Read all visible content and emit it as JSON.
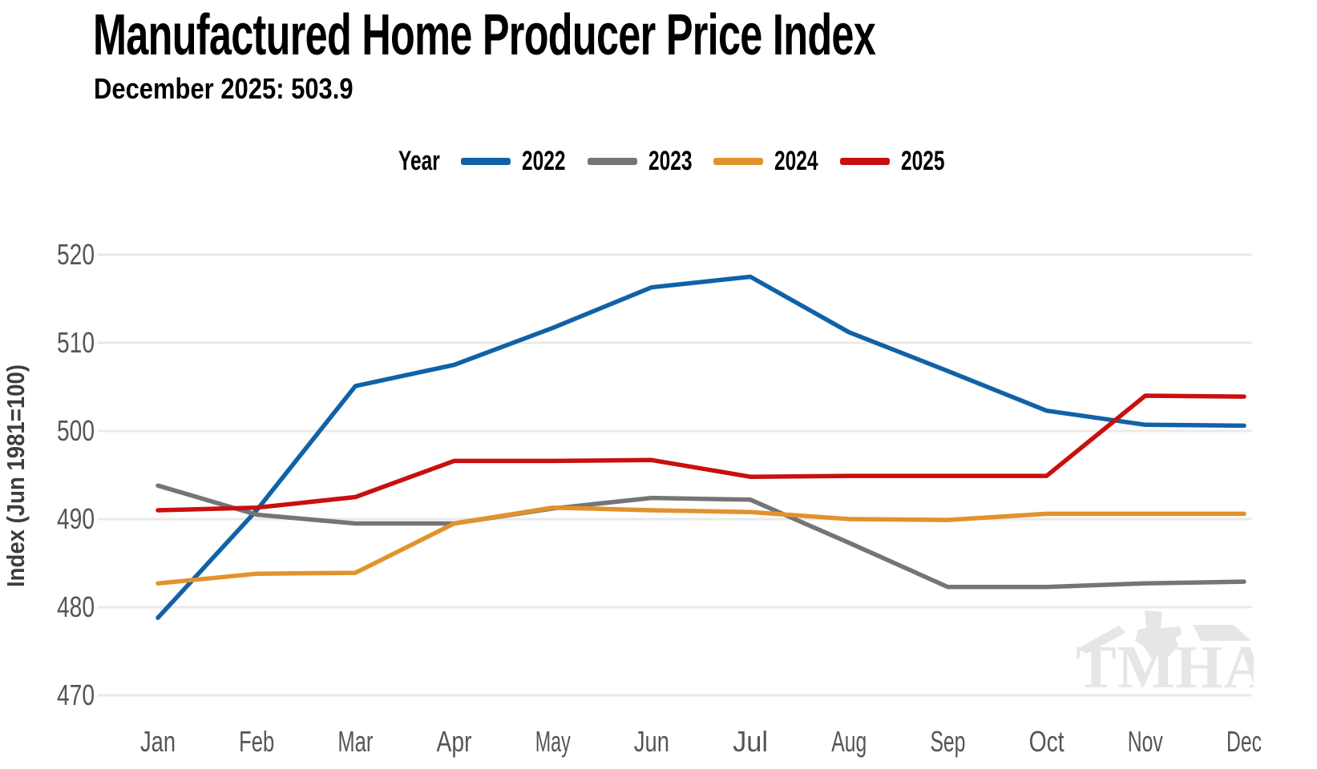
{
  "header": {
    "title": "Manufactured Home Producer Price Index",
    "subtitle": "December 2025: 503.9"
  },
  "legend": {
    "label": "Year"
  },
  "watermark": {
    "text": "TMHA"
  },
  "chart_data": {
    "type": "line",
    "title": "Manufactured Home Producer Price Index",
    "subtitle": "December 2025: 503.9",
    "xlabel": "",
    "ylabel": "Index (Jun 1981=100)",
    "x": [
      "Jan",
      "Feb",
      "Mar",
      "Apr",
      "May",
      "Jun",
      "Jul",
      "Aug",
      "Sep",
      "Oct",
      "Nov",
      "Dec"
    ],
    "yticks": [
      470,
      480,
      490,
      500,
      510,
      520
    ],
    "ylim": [
      465,
      524
    ],
    "grid": "horizontal",
    "legend_position": "top",
    "series": [
      {
        "name": "2022",
        "color": "#1062A8",
        "values": [
          478.8,
          491.0,
          505.1,
          507.5,
          511.7,
          516.3,
          517.5,
          511.2,
          506.8,
          502.3,
          500.7,
          500.6
        ]
      },
      {
        "name": "2023",
        "color": "#757575",
        "values": [
          493.8,
          490.5,
          489.5,
          489.5,
          491.2,
          492.4,
          492.2,
          487.3,
          482.3,
          482.3,
          482.7,
          482.9
        ]
      },
      {
        "name": "2024",
        "color": "#E2922C",
        "values": [
          482.7,
          483.8,
          483.9,
          489.5,
          491.3,
          491.0,
          490.8,
          490.0,
          489.9,
          490.6,
          490.6,
          490.6
        ]
      },
      {
        "name": "2025",
        "color": "#C90F0F",
        "values": [
          491.0,
          491.3,
          492.5,
          496.6,
          496.6,
          496.7,
          494.8,
          494.9,
          494.9,
          494.9,
          504.0,
          503.9
        ]
      }
    ]
  }
}
